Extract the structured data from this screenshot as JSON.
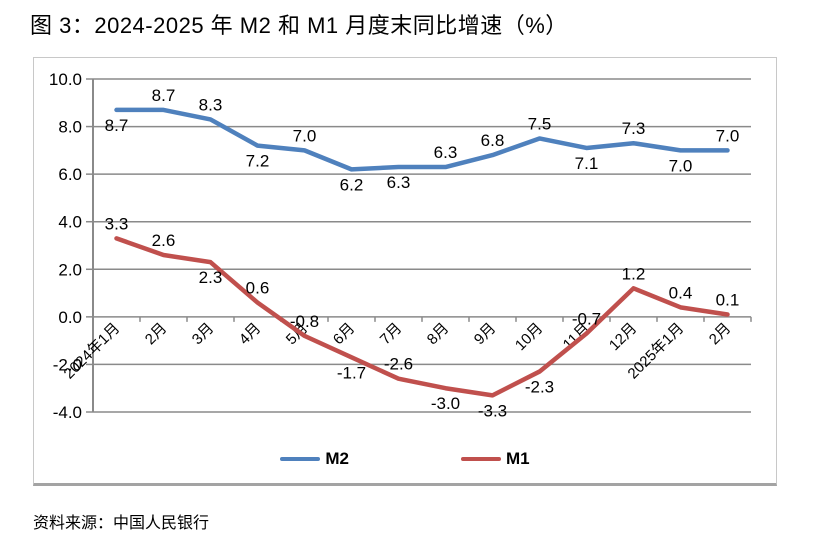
{
  "figure": {
    "title": "图 3：2024-2025 年 M2 和 M1 月度末同比增速（%）",
    "source": "资料来源：中国人民银行"
  },
  "chart_data": {
    "type": "line",
    "title": "图 3：2024-2025 年 M2 和 M1 月度末同比增速（%）",
    "categories": [
      "2024年1月",
      "2月",
      "3月",
      "4月",
      "5月",
      "6月",
      "7月",
      "8月",
      "9月",
      "10月",
      "11月",
      "12月",
      "2025年1月",
      "2月"
    ],
    "series": [
      {
        "name": "M2",
        "color": "#4F81BD",
        "values": [
          8.7,
          8.7,
          8.3,
          7.2,
          7.0,
          6.2,
          6.3,
          6.3,
          6.8,
          7.5,
          7.1,
          7.3,
          7.0,
          7.0
        ],
        "label_positions": [
          "below",
          "above",
          "above",
          "below",
          "above",
          "below",
          "below",
          "above",
          "above",
          "above",
          "below",
          "above",
          "below",
          "above"
        ]
      },
      {
        "name": "M1",
        "color": "#C0504D",
        "values": [
          3.3,
          2.6,
          2.3,
          0.6,
          -0.8,
          -1.7,
          -2.6,
          -3.0,
          -3.3,
          -2.3,
          -0.7,
          1.2,
          0.4,
          0.1
        ],
        "label_positions": [
          "above",
          "above",
          "below",
          "above",
          "above",
          "below",
          "above",
          "below",
          "below",
          "below",
          "above",
          "above",
          "above",
          "above"
        ]
      }
    ],
    "y_ticks": [
      10.0,
      8.0,
      6.0,
      4.0,
      2.0,
      0.0,
      -2.0,
      -4.0
    ],
    "ylim": [
      -4,
      10
    ],
    "grid": true,
    "legend_position": "bottom",
    "legend_entries": [
      "M2",
      "M1"
    ],
    "axis_color": "#8a8a8a",
    "text_color": "#000000",
    "value_decimals": 1
  }
}
